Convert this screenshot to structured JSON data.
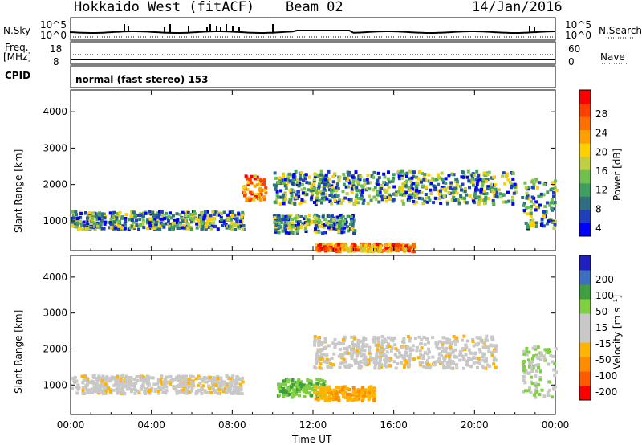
{
  "header": {
    "title": "Hokkaido West (fitACF)",
    "beam": "Beam 02",
    "date": "14/Jan/2016"
  },
  "top_panels": {
    "nsky_label": "N.Sky",
    "nsky_ticks": [
      "10^5",
      "10^0"
    ],
    "nsearch_label": "N.Search",
    "nsearch_ticks": [
      "10^5",
      "10^0"
    ],
    "freq_label_1": "Freq.",
    "freq_label_2": "[MHz]",
    "freq_ticks": [
      "18",
      "8"
    ],
    "nave_label": "Nave",
    "nave_ticks": [
      "60",
      "0"
    ],
    "cpid_label": "CPID",
    "cpid_text": "normal (fast stereo) 153"
  },
  "chart_data": [
    {
      "type": "heatmap",
      "name": "power",
      "ylabel": "Slant Range [km]",
      "ylim": [
        180,
        4600
      ],
      "yticks": [
        "1000",
        "2000",
        "3000",
        "4000"
      ],
      "xticks": [
        "00:00",
        "04:00",
        "08:00",
        "12:00",
        "16:00",
        "20:00",
        "00:00"
      ],
      "colorbar": {
        "label": "Power [dB]",
        "ticks": [
          "28",
          "24",
          "20",
          "16",
          "12",
          "8",
          "4"
        ],
        "colors": [
          "#0000ff",
          "#1f3fbf",
          "#2f6f7f",
          "#3f9f5f",
          "#6fc04f",
          "#bfcf3f",
          "#ffcf00",
          "#ff9f00",
          "#ff6f00",
          "#ff3f00",
          "#ff0000"
        ]
      },
      "regions": [
        {
          "t_start": 0.0,
          "t_end": 8.5,
          "range_start": 800,
          "range_end": 1300,
          "level": "moderate"
        },
        {
          "t_start": 8.5,
          "t_end": 9.6,
          "range_start": 1600,
          "range_end": 2300,
          "level": "strong"
        },
        {
          "t_start": 10.0,
          "t_end": 14.0,
          "range_start": 700,
          "range_end": 1200,
          "level": "moderate"
        },
        {
          "t_start": 10.0,
          "t_end": 22.0,
          "range_start": 1500,
          "range_end": 2400,
          "level": "moderate"
        },
        {
          "t_start": 12.0,
          "t_end": 17.0,
          "range_start": 200,
          "range_end": 400,
          "level": "strong"
        },
        {
          "t_start": 22.3,
          "t_end": 24.0,
          "range_start": 800,
          "range_end": 2200,
          "level": "moderate"
        }
      ]
    },
    {
      "type": "heatmap",
      "name": "velocity",
      "ylabel": "Slant Range [km]",
      "xlabel": "Time UT",
      "ylim": [
        180,
        4600
      ],
      "yticks": [
        "1000",
        "2000",
        "3000",
        "4000"
      ],
      "xticks": [
        "00:00",
        "04:00",
        "08:00",
        "12:00",
        "16:00",
        "20:00",
        "00:00"
      ],
      "colorbar": {
        "label": "Velocity [m s⁻¹]",
        "ticks": [
          "200",
          "100",
          "50",
          "15",
          "-15",
          "-50",
          "-100",
          "-200"
        ],
        "colors": [
          "#ff0000",
          "#ff5a00",
          "#ff8c00",
          "#ffb400",
          "#c8c8c8",
          "#c8c8c8",
          "#7fd040",
          "#3f9f3f",
          "#3f6fbf",
          "#2020c0"
        ]
      },
      "regions": [
        {
          "t_start": 0.0,
          "t_end": 8.5,
          "range_start": 800,
          "range_end": 1300,
          "velocity": "near zero"
        },
        {
          "t_start": 10.2,
          "t_end": 12.5,
          "range_start": 700,
          "range_end": 1200,
          "velocity": "towards"
        },
        {
          "t_start": 12.0,
          "t_end": 15.0,
          "range_start": 600,
          "range_end": 1000,
          "velocity": "away"
        },
        {
          "t_start": 12.0,
          "t_end": 21.0,
          "range_start": 1500,
          "range_end": 2400,
          "velocity": "near zero"
        },
        {
          "t_start": 22.3,
          "t_end": 24.0,
          "range_start": 700,
          "range_end": 2100,
          "velocity": "near zero to towards"
        }
      ]
    }
  ]
}
